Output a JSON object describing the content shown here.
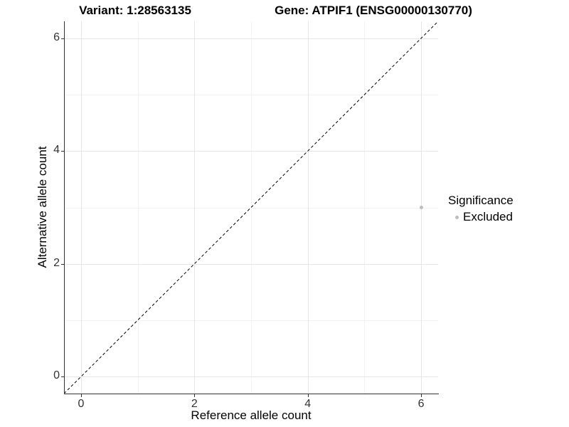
{
  "chart_data": {
    "type": "scatter",
    "title_left": "Variant: 1:28563135",
    "title_right": "Gene: ATPIF1 (ENSG00000130770)",
    "xlabel": "Reference allele count",
    "ylabel": "Alternative allele count",
    "xlim": [
      -0.3,
      6.3
    ],
    "ylim": [
      -0.3,
      6.3
    ],
    "x_major_ticks": [
      0,
      2,
      4,
      6
    ],
    "y_major_ticks": [
      0,
      2,
      4,
      6
    ],
    "x_minor": [
      1,
      3,
      5
    ],
    "y_minor": [
      1,
      3,
      5
    ],
    "grid": true,
    "reference_line": {
      "type": "identity",
      "style": "dashed",
      "color": "#000000"
    },
    "points": [
      {
        "x": 6,
        "y": 3,
        "series": "Excluded",
        "color": "#bdbdbd"
      }
    ],
    "legend": {
      "title": "Significance",
      "position": "right",
      "items": [
        {
          "label": "Excluded",
          "color": "#bdbdbd"
        }
      ]
    }
  },
  "colors": {
    "background": "#ffffff",
    "grid_major": "#e6e6e6",
    "grid_minor": "#f2f2f2",
    "axis": "#333333",
    "tick_text": "#333333",
    "point_excluded": "#bdbdbd"
  }
}
